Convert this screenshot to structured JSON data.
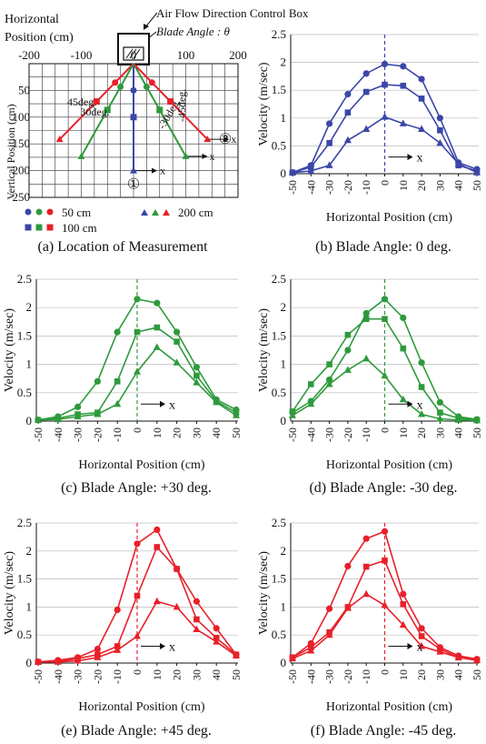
{
  "location_panel": {
    "caption": "(a) Location of Measurement",
    "box_label": "Air Flow Direction Control Box",
    "blade_label": "Blade Angle : θ",
    "xlabel_line1": "Horizontal",
    "xlabel_line2": "Position (cm)",
    "ylabel": "Vertical Position (cm)",
    "x_ticks": [
      "-200",
      "-100",
      "0",
      "100",
      "200"
    ],
    "x_tick_values": [
      -200,
      -100,
      0,
      100,
      200
    ],
    "y_ticks": [
      "50",
      "100",
      "150",
      "200",
      "250"
    ],
    "y_tick_values": [
      50,
      100,
      150,
      200,
      250
    ],
    "lines": [
      {
        "label": "45deg.",
        "color": "#e8202a",
        "angle": -45
      },
      {
        "label": "30deg.",
        "color": "#2e9a3c",
        "angle": -30
      },
      {
        "label": "-30deg.",
        "color": "#2e9a3c",
        "angle": 30
      },
      {
        "label": "-45deg.",
        "color": "#e8202a",
        "angle": 45
      }
    ],
    "marker_label_1": "①",
    "marker_label_2": "②",
    "axis_marker": "x",
    "legend": {
      "circle": "50 cm",
      "square": "100 cm",
      "triangle": "200 cm"
    }
  },
  "chart_data": [
    {
      "type": "line",
      "caption": "(b) Blade Angle: 0 deg.",
      "color": "#3b46a8",
      "ylabel": "Velocity (m/sec)",
      "xlabel": "Horizontal Position (cm)",
      "x": [
        -50,
        -40,
        -30,
        -20,
        -10,
        0,
        10,
        20,
        30,
        40,
        50
      ],
      "x_tick_labels": [
        "-50",
        "-40",
        "-30",
        "-20",
        "-10",
        "0",
        "10",
        "20",
        "30",
        "40",
        "50"
      ],
      "ylim": [
        0,
        2.5
      ],
      "y_ticks": [
        "0",
        "0.5",
        "1",
        "1.5",
        "2",
        "2.5"
      ],
      "y_tick_values": [
        0,
        0.5,
        1,
        1.5,
        2,
        2.5
      ],
      "annotation": "x",
      "series": [
        {
          "marker": "circle",
          "values": [
            0.02,
            0.15,
            0.9,
            1.43,
            1.8,
            1.97,
            1.93,
            1.7,
            1.0,
            0.2,
            0.08
          ]
        },
        {
          "marker": "square",
          "values": [
            0.02,
            0.12,
            0.55,
            1.1,
            1.47,
            1.6,
            1.58,
            1.35,
            0.78,
            0.15,
            0.05
          ]
        },
        {
          "marker": "triangle",
          "values": [
            0.02,
            0.05,
            0.15,
            0.6,
            0.8,
            1.02,
            0.9,
            0.8,
            0.55,
            0.18,
            0.02
          ]
        }
      ]
    },
    {
      "type": "line",
      "caption": "(c) Blade Angle: +30 deg.",
      "color": "#2e9a3c",
      "ylabel": "Velocity (m/sec)",
      "xlabel": "Horizontal Position (cm)",
      "x": [
        -50,
        -40,
        -30,
        -20,
        -10,
        0,
        10,
        20,
        30,
        40,
        50
      ],
      "x_tick_labels": [
        "-50",
        "-40",
        "-30",
        "-20",
        "-10",
        "0",
        "10",
        "20",
        "30",
        "40",
        "50"
      ],
      "ylim": [
        0,
        2.5
      ],
      "y_ticks": [
        "0",
        "0.5",
        "1",
        "1.5",
        "2",
        "2.5"
      ],
      "y_tick_values": [
        0,
        0.5,
        1,
        1.5,
        2,
        2.5
      ],
      "annotation": "x",
      "series": [
        {
          "marker": "circle",
          "values": [
            0.02,
            0.08,
            0.25,
            0.7,
            1.57,
            2.15,
            2.08,
            1.57,
            0.95,
            0.38,
            0.2
          ]
        },
        {
          "marker": "square",
          "values": [
            0.02,
            0.05,
            0.12,
            0.15,
            0.7,
            1.57,
            1.65,
            1.4,
            0.8,
            0.35,
            0.15
          ]
        },
        {
          "marker": "triangle",
          "values": [
            0.02,
            0.03,
            0.08,
            0.12,
            0.3,
            0.87,
            1.3,
            1.03,
            0.68,
            0.33,
            0.1
          ]
        }
      ]
    },
    {
      "type": "line",
      "caption": "(d) Blade Angle: -30 deg.",
      "color": "#2e9a3c",
      "ylabel": "Velocity (m/sec)",
      "xlabel": "Horizontal Position (cm)",
      "x": [
        -50,
        -40,
        -30,
        -20,
        -10,
        0,
        10,
        20,
        30,
        40,
        50
      ],
      "x_tick_labels": [
        "-50",
        "-40",
        "-30",
        "-20",
        "-10",
        "0",
        "10",
        "20",
        "30",
        "40",
        "50"
      ],
      "ylim": [
        0,
        2.5
      ],
      "y_ticks": [
        "0",
        "0.5",
        "1",
        "1.5",
        "2",
        "2.5"
      ],
      "y_tick_values": [
        0,
        0.5,
        1,
        1.5,
        2,
        2.5
      ],
      "annotation": "x",
      "series": [
        {
          "marker": "circle",
          "values": [
            0.15,
            0.35,
            0.73,
            1.25,
            1.9,
            2.15,
            1.82,
            1.03,
            0.33,
            0.08,
            0.03
          ]
        },
        {
          "marker": "square",
          "values": [
            0.17,
            0.65,
            1.0,
            1.52,
            1.8,
            1.8,
            1.28,
            0.6,
            0.15,
            0.05,
            0.02
          ]
        },
        {
          "marker": "triangle",
          "values": [
            0.1,
            0.3,
            0.65,
            0.9,
            1.1,
            0.8,
            0.38,
            0.12,
            0.04,
            0.02,
            0.01
          ]
        }
      ]
    },
    {
      "type": "line",
      "caption": "(e) Blade Angle: +45 deg.",
      "color": "#e8202a",
      "ylabel": "Velocity (m/sec)",
      "xlabel": "Horizontal Position (cm)",
      "x": [
        -50,
        -40,
        -30,
        -20,
        -10,
        0,
        10,
        20,
        30,
        40,
        50
      ],
      "x_tick_labels": [
        "-50",
        "-40",
        "-30",
        "-20",
        "-10",
        "0",
        "10",
        "20",
        "30",
        "40",
        "50"
      ],
      "ylim": [
        0,
        2.5
      ],
      "y_ticks": [
        "0",
        "0.5",
        "1",
        "1.5",
        "2",
        "2.5"
      ],
      "y_tick_values": [
        0,
        0.5,
        1,
        1.5,
        2,
        2.5
      ],
      "annotation": "x",
      "series": [
        {
          "marker": "circle",
          "values": [
            0.02,
            0.05,
            0.1,
            0.25,
            0.95,
            2.13,
            2.38,
            1.68,
            1.1,
            0.62,
            0.15
          ]
        },
        {
          "marker": "square",
          "values": [
            0.02,
            0.03,
            0.08,
            0.15,
            0.3,
            1.2,
            2.07,
            1.68,
            0.78,
            0.45,
            0.15
          ]
        },
        {
          "marker": "triangle",
          "values": [
            0.02,
            0.02,
            0.04,
            0.1,
            0.23,
            0.48,
            1.1,
            1.0,
            0.6,
            0.38,
            0.13
          ]
        }
      ]
    },
    {
      "type": "line",
      "caption": "(f) Blade Angle: -45 deg.",
      "color": "#e8202a",
      "ylabel": "Velocity (m/sec)",
      "xlabel": "Horizontal Position (cm)",
      "x": [
        -50,
        -40,
        -30,
        -20,
        -10,
        0,
        10,
        20,
        30,
        40,
        50
      ],
      "x_tick_labels": [
        "-50",
        "-40",
        "-30",
        "-20",
        "-10",
        "0",
        "10",
        "20",
        "30",
        "40",
        "50"
      ],
      "ylim": [
        0,
        2.5
      ],
      "y_ticks": [
        "0",
        "0.5",
        "1",
        "1.5",
        "2",
        "2.5"
      ],
      "y_tick_values": [
        0,
        0.5,
        1,
        1.5,
        2,
        2.5
      ],
      "annotation": "x",
      "series": [
        {
          "marker": "circle",
          "values": [
            0.1,
            0.35,
            0.97,
            1.73,
            2.22,
            2.35,
            1.23,
            0.62,
            0.28,
            0.13,
            0.07
          ]
        },
        {
          "marker": "square",
          "values": [
            0.1,
            0.28,
            0.55,
            1.0,
            1.72,
            1.83,
            1.05,
            0.48,
            0.25,
            0.1,
            0.05
          ]
        },
        {
          "marker": "triangle",
          "values": [
            0.08,
            0.22,
            0.5,
            0.98,
            1.23,
            1.03,
            0.68,
            0.3,
            0.2,
            0.1,
            0.05
          ]
        }
      ]
    }
  ]
}
